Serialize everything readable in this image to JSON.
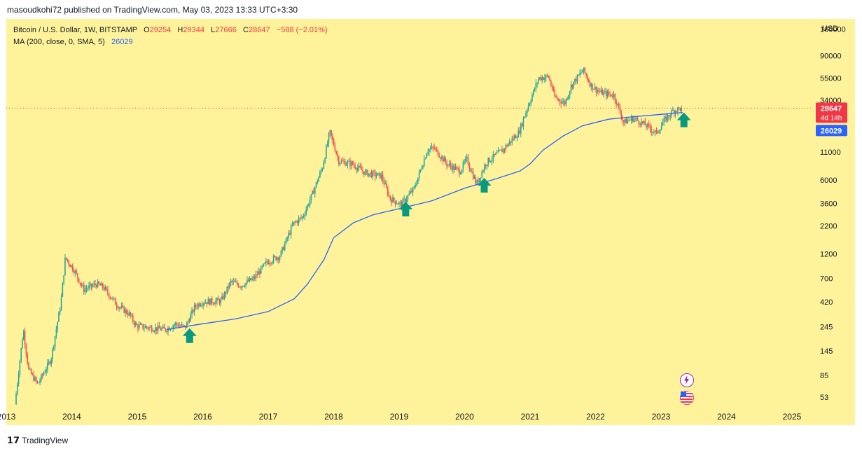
{
  "header": {
    "publisher_line": "masoudkohi72 published on TradingView.com, May 03, 2023 13:33 UTC+3:30"
  },
  "legend": {
    "symbol_line": "Bitcoin / U.S. Dollar, 1W, BITSTAMP",
    "ohlc": {
      "o_label": "O",
      "o_value": "29254",
      "h_label": "H",
      "h_value": "29344",
      "l_label": "L",
      "l_value": "27666",
      "c_label": "C",
      "c_value": "28647",
      "change": "−588 (−2.01%)"
    },
    "ma_line": "MA (200, close, 0, SMA, 5)",
    "ma_value": "26029"
  },
  "footer": {
    "brand": "TradingView"
  },
  "icons": [
    "bolt-icon",
    "us-flag-icon",
    "up-arrow-icon"
  ],
  "colors": {
    "background": "#fef39a",
    "up": "#26a69a",
    "down": "#ef5350",
    "ma": "#2962ff",
    "arrow": "#089981",
    "price_label": "#f23645"
  },
  "chart_data": {
    "type": "candlestick",
    "title": "Bitcoin / U.S. Dollar, 1W, BITSTAMP",
    "currency": "USD",
    "scale": "log",
    "x_ticks": [
      "2013",
      "2014",
      "2015",
      "2016",
      "2017",
      "2018",
      "2019",
      "2020",
      "2021",
      "2022",
      "2023",
      "2024",
      "2025"
    ],
    "y_ticks": [
      "160000",
      "90000",
      "55000",
      "34000",
      "11000",
      "6000",
      "3600",
      "2200",
      "1200",
      "700",
      "420",
      "245",
      "145",
      "85",
      "53"
    ],
    "ylim": [
      42,
      200000
    ],
    "xlim": [
      2013.0,
      2025.3
    ],
    "last_price": {
      "value": "28647",
      "countdown": "4d 14h"
    },
    "ma_last": "26029",
    "price_path": [
      [
        2013.15,
        45
      ],
      [
        2013.28,
        230
      ],
      [
        2013.36,
        95
      ],
      [
        2013.5,
        70
      ],
      [
        2013.7,
        120
      ],
      [
        2013.85,
        400
      ],
      [
        2013.92,
        1100
      ],
      [
        2014.05,
        850
      ],
      [
        2014.2,
        550
      ],
      [
        2014.4,
        620
      ],
      [
        2014.5,
        580
      ],
      [
        2014.7,
        400
      ],
      [
        2014.9,
        320
      ],
      [
        2015.0,
        250
      ],
      [
        2015.2,
        240
      ],
      [
        2015.45,
        230
      ],
      [
        2015.6,
        260
      ],
      [
        2015.75,
        240
      ],
      [
        2015.9,
        380
      ],
      [
        2016.0,
        420
      ],
      [
        2016.3,
        430
      ],
      [
        2016.45,
        650
      ],
      [
        2016.6,
        600
      ],
      [
        2016.8,
        700
      ],
      [
        2017.0,
        1000
      ],
      [
        2017.2,
        1150
      ],
      [
        2017.4,
        2300
      ],
      [
        2017.55,
        2700
      ],
      [
        2017.7,
        4500
      ],
      [
        2017.85,
        8000
      ],
      [
        2017.96,
        17000
      ],
      [
        2018.1,
        9000
      ],
      [
        2018.3,
        8500
      ],
      [
        2018.5,
        7000
      ],
      [
        2018.75,
        6500
      ],
      [
        2018.88,
        4000
      ],
      [
        2019.05,
        3500
      ],
      [
        2019.25,
        5000
      ],
      [
        2019.45,
        11500
      ],
      [
        2019.55,
        12000
      ],
      [
        2019.75,
        8500
      ],
      [
        2019.95,
        7200
      ],
      [
        2020.05,
        9500
      ],
      [
        2020.2,
        5500
      ],
      [
        2020.35,
        8800
      ],
      [
        2020.6,
        11500
      ],
      [
        2020.85,
        17000
      ],
      [
        2020.97,
        28000
      ],
      [
        2021.15,
        55000
      ],
      [
        2021.3,
        57000
      ],
      [
        2021.4,
        36000
      ],
      [
        2021.55,
        32000
      ],
      [
        2021.65,
        47000
      ],
      [
        2021.83,
        66000
      ],
      [
        2021.95,
        47000
      ],
      [
        2022.1,
        40000
      ],
      [
        2022.3,
        38000
      ],
      [
        2022.45,
        21000
      ],
      [
        2022.6,
        23000
      ],
      [
        2022.8,
        19500
      ],
      [
        2022.95,
        16500
      ],
      [
        2023.05,
        21000
      ],
      [
        2023.2,
        27000
      ],
      [
        2023.33,
        28647
      ]
    ],
    "ma200": [
      [
        2015.45,
        230
      ],
      [
        2015.9,
        255
      ],
      [
        2016.5,
        290
      ],
      [
        2017.0,
        340
      ],
      [
        2017.4,
        450
      ],
      [
        2017.6,
        620
      ],
      [
        2017.85,
        1050
      ],
      [
        2018.0,
        1700
      ],
      [
        2018.3,
        2350
      ],
      [
        2018.6,
        2800
      ],
      [
        2019.0,
        3200
      ],
      [
        2019.5,
        3800
      ],
      [
        2020.0,
        5000
      ],
      [
        2020.5,
        6200
      ],
      [
        2020.85,
        7300
      ],
      [
        2021.0,
        8500
      ],
      [
        2021.2,
        11500
      ],
      [
        2021.5,
        15500
      ],
      [
        2021.8,
        19500
      ],
      [
        2022.2,
        22500
      ],
      [
        2022.6,
        23800
      ],
      [
        2023.0,
        25000
      ],
      [
        2023.33,
        26029
      ]
    ],
    "annotations": [
      {
        "type": "up-arrow",
        "x": 2015.8,
        "y": 200
      },
      {
        "type": "up-arrow",
        "x": 2019.1,
        "y": 3150
      },
      {
        "type": "up-arrow",
        "x": 2020.3,
        "y": 5300
      },
      {
        "type": "up-arrow",
        "x": 2023.35,
        "y": 22000
      }
    ]
  }
}
